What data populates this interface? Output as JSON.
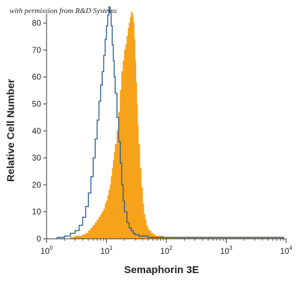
{
  "credit": "with permission from R&D Systems",
  "chart_data": {
    "type": "histogram",
    "xlabel": "Semaphorin 3E",
    "ylabel": "Relative Cell Number",
    "x_scale": "log",
    "xlim": [
      1,
      10000
    ],
    "ylim": [
      0,
      85
    ],
    "x_ticks": [
      {
        "value": 1,
        "base": "10",
        "exp": "0"
      },
      {
        "value": 10,
        "base": "10",
        "exp": "1"
      },
      {
        "value": 100,
        "base": "10",
        "exp": "2"
      },
      {
        "value": 1000,
        "base": "10",
        "exp": "3"
      },
      {
        "value": 10000,
        "base": "10",
        "exp": "4"
      }
    ],
    "y_ticks": [
      0,
      10,
      20,
      30,
      40,
      50,
      60,
      70,
      80
    ],
    "colors": {
      "stained": "#f7a21b",
      "control": "#2b5d8f",
      "axis": "#333333"
    },
    "series": [
      {
        "style": "filled",
        "color": "#f7a21b",
        "x": [
          2.5,
          3,
          3.5,
          4,
          4.5,
          5,
          5.5,
          6,
          6.5,
          7,
          7.5,
          8,
          8.5,
          9,
          9.5,
          10,
          10.5,
          11,
          11.5,
          12,
          12.5,
          13,
          13.5,
          14,
          15,
          16,
          17,
          18,
          19,
          20,
          21,
          22,
          23,
          24,
          25,
          26,
          27,
          28,
          29,
          30,
          31,
          32,
          33,
          34,
          36,
          38,
          40,
          42,
          44,
          46,
          48,
          50,
          55,
          60,
          65,
          70,
          80,
          90,
          100,
          120,
          150,
          200,
          300,
          500,
          1000,
          3000,
          9000
        ],
        "y": [
          0.5,
          1,
          1,
          1.5,
          2,
          3,
          4,
          5,
          6,
          7,
          8,
          9,
          10,
          11,
          13,
          14,
          16,
          18,
          20,
          23,
          26,
          29,
          32,
          35,
          40,
          47,
          55,
          62,
          66,
          70,
          72,
          75,
          78,
          80,
          82,
          84,
          83,
          80,
          74,
          66,
          58,
          50,
          42,
          35,
          26,
          19,
          13,
          9,
          7,
          5,
          4,
          3,
          2,
          1.5,
          1,
          1,
          1,
          0.5,
          0.5,
          0.5,
          0.5,
          0.5,
          0.5,
          0.5,
          0.5,
          0.5,
          0
        ]
      },
      {
        "style": "outline",
        "color": "#2b5d8f",
        "x": [
          1.5,
          2,
          2.5,
          3,
          3.5,
          4,
          4.5,
          5,
          5.5,
          6,
          6.5,
          7,
          7.5,
          8,
          8.5,
          9,
          9.5,
          10,
          10.5,
          11,
          11.5,
          12,
          12.5,
          13,
          13.5,
          14,
          15,
          16,
          17,
          18,
          19,
          20,
          22,
          24,
          26,
          28,
          30,
          35,
          40,
          50,
          70,
          100,
          300,
          1000,
          3000,
          9000
        ],
        "y": [
          0.5,
          1,
          2,
          3,
          5,
          8,
          12,
          17,
          23,
          30,
          37,
          44,
          51,
          57,
          62,
          68,
          74,
          79,
          83,
          86,
          84,
          79,
          72,
          66,
          60,
          54,
          45,
          36,
          28,
          20,
          14,
          10,
          6,
          4,
          3,
          2,
          1.5,
          1,
          1,
          0.5,
          0.5,
          0.5,
          0.5,
          0.5,
          0.5,
          0
        ]
      }
    ]
  }
}
